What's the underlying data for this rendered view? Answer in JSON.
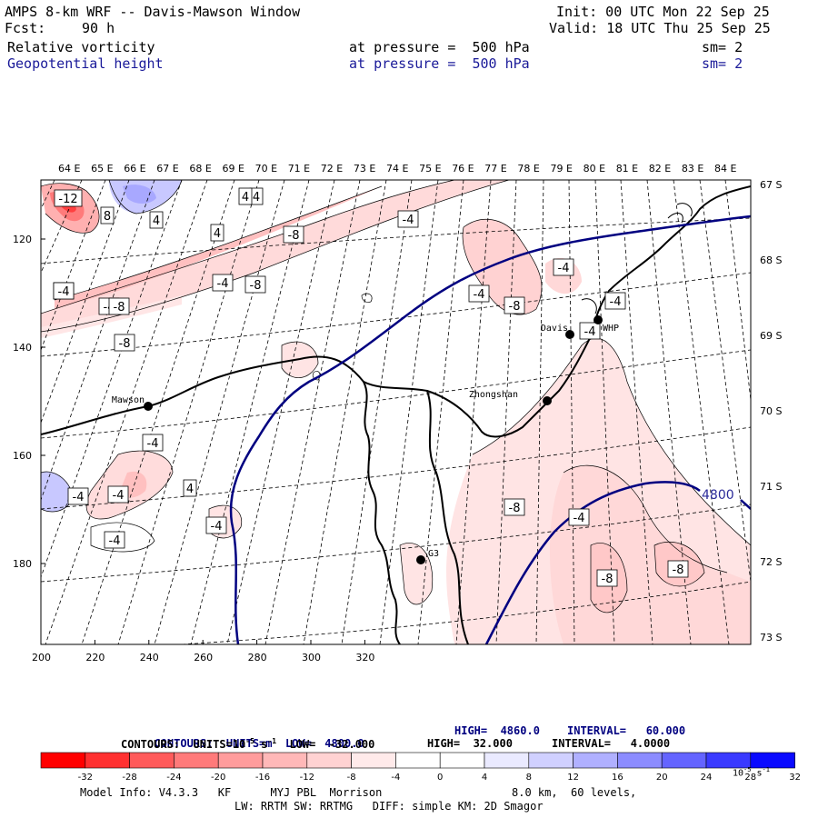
{
  "header": {
    "title": "AMPS 8-km WRF -- Davis-Mawson Window",
    "fcst_label": "Fcst:",
    "fcst_value": "90 h",
    "init": "Init: 00 UTC Mon 22 Sep 25",
    "valid": "Valid: 18 UTC Thu 25 Sep 25",
    "field1": "Relative vorticity",
    "field1_level": "at pressure =  500 hPa",
    "field1_sm": "sm= 2",
    "field2": "Geopotential height",
    "field2_level": "at pressure =  500 hPa",
    "field2_sm": "sm= 2"
  },
  "map": {
    "lon_labels": [
      "64 E",
      "65 E",
      "66 E",
      "67 E",
      "68 E",
      "69 E",
      "70 E",
      "71 E",
      "72 E",
      "73 E",
      "74 E",
      "75 E",
      "76 E",
      "77 E",
      "78 E",
      "79 E",
      "80 E",
      "81 E",
      "82 E",
      "83 E",
      "84 E"
    ],
    "lat_labels": [
      "67 S",
      "68 S",
      "69 S",
      "70 S",
      "71 S",
      "72 S",
      "73 S"
    ],
    "y_ticks": [
      "120",
      "140",
      "160",
      "180"
    ],
    "x_ticks": [
      "200",
      "220",
      "240",
      "260",
      "280",
      "300",
      "320"
    ],
    "stations": [
      {
        "name": "Mawson"
      },
      {
        "name": "Davis"
      },
      {
        "name": "WHP"
      },
      {
        "name": "Zhongshan"
      },
      {
        "name": "G3"
      }
    ],
    "height_label": "4800",
    "vort_labels": [
      "-12",
      "8",
      "4",
      "4",
      "4",
      "-8",
      "-4",
      "-4",
      "-8",
      "-8",
      "-4",
      "-8",
      "-4",
      "-8",
      "-4",
      "-4",
      "-4",
      "-4",
      "-4",
      "-4",
      "-8",
      "-4",
      "-8",
      "-8",
      "-4",
      "4",
      "-8",
      "-4",
      "4",
      "-4"
    ]
  },
  "legend": {
    "contours1_prefix": "CONTOURS:  UNITS=m  LOW=  4800.0",
    "contours1_high": "HIGH=  4860.0",
    "contours1_interval": "INTERVAL=   60.000",
    "contours2_prefix": "CONTOURS:  UNITS=10",
    "contours2_sup": "-5",
    "contours2_mid": " s",
    "contours2_sup2": "-1",
    "contours2_low": "  LOW=  -32.000",
    "contours2_high": "HIGH=  32.000",
    "contours2_interval": "INTERVAL=   4.0000",
    "colorbar_labels": [
      "-32",
      "-28",
      "-24",
      "-20",
      "-16",
      "-12",
      "-8",
      "-4",
      "0",
      "4",
      "8",
      "12",
      "16",
      "20",
      "24",
      "28",
      "32"
    ],
    "colorbar_units": "10",
    "colorbar_units_sup": "-5",
    "colorbar_units_tail": " s",
    "colorbar_units_sup2": "-1",
    "colorbar_colors": [
      "#ff0000",
      "#ff3030",
      "#ff5a5a",
      "#ff7a7a",
      "#ff9c9c",
      "#ffb8b8",
      "#ffd2d2",
      "#ffeaea",
      "#ffffff",
      "#ffffff",
      "#eaeaff",
      "#d0d0ff",
      "#b0b0ff",
      "#8c8cff",
      "#6464ff",
      "#3a3aff",
      "#0a0aff"
    ]
  },
  "footer": {
    "line1_left": "Model Info: V4.3.3   KF      MYJ PBL  Morrison",
    "line1_right": "8.0 km,  60 levels,",
    "line2": "LW: RRTM SW: RRTMG   DIFF: simple KM: 2D Smagor"
  }
}
